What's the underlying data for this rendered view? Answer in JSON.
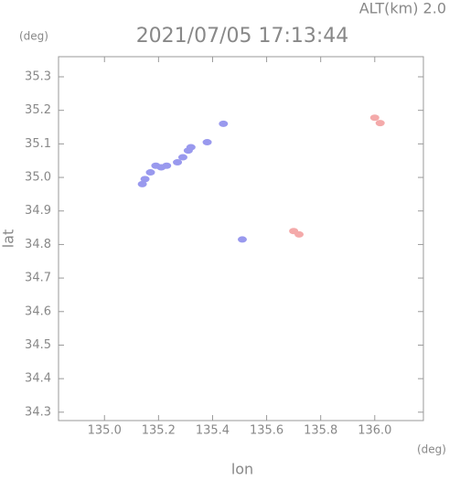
{
  "chart_data": {
    "type": "scatter",
    "title": "2021/07/05 17:13:44",
    "altitude_label": "ALT(km)  2.0",
    "y_unit": "(deg)",
    "x_unit": "(deg)",
    "x_label": "lon",
    "y_label": "lat",
    "xlim": [
      134.83,
      136.18
    ],
    "ylim": [
      34.275,
      35.36
    ],
    "xticks": [
      {
        "value": 135.0,
        "label": "135.0"
      },
      135.2,
      135.4,
      135.6,
      135.8,
      {
        "value": 136.0,
        "label": "136.0"
      }
    ],
    "yticks": [
      34.3,
      34.4,
      34.5,
      34.6,
      34.7,
      34.8,
      34.9,
      {
        "value": 35.0,
        "label": "35.0"
      },
      35.1,
      35.2,
      35.3
    ],
    "series": [
      {
        "color": "#9999ee",
        "x": [
          135.19,
          135.21,
          135.23,
          135.17,
          135.15,
          135.14,
          135.27,
          135.29,
          135.31,
          135.32,
          135.38,
          135.44,
          135.51
        ],
        "y": [
          35.035,
          35.03,
          35.035,
          35.015,
          34.995,
          34.98,
          35.045,
          35.06,
          35.08,
          35.09,
          35.105,
          35.16,
          34.815
        ]
      },
      {
        "color": "#f4aaaa",
        "x": [
          135.7,
          135.72,
          136.0,
          136.02
        ],
        "y": [
          34.84,
          34.83,
          35.178,
          35.162
        ]
      }
    ]
  }
}
